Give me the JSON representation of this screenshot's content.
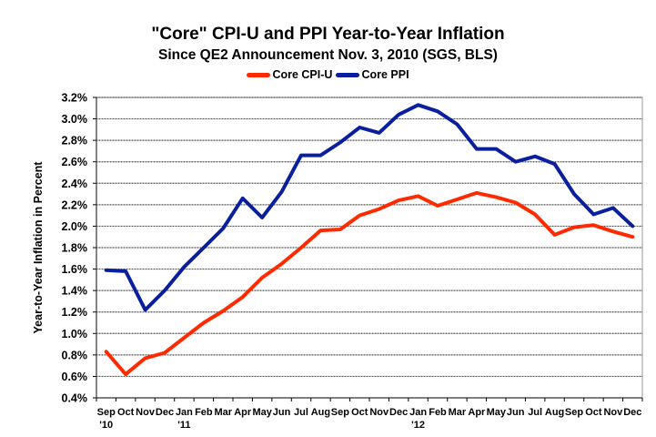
{
  "chart_data": {
    "type": "line",
    "title": "\"Core\" CPI-U and PPI Year-to-Year Inflation",
    "subtitle": "Since QE2 Announcement Nov. 3, 2010 (SGS, BLS)",
    "xlabel": "",
    "ylabel": "Year-to-Year Inflation in Percent",
    "ylim": [
      0.4,
      3.2
    ],
    "ytick_step": 0.2,
    "yticks": [
      "0.4%",
      "0.6%",
      "0.8%",
      "1.0%",
      "1.2%",
      "1.4%",
      "1.6%",
      "1.8%",
      "2.0%",
      "2.2%",
      "2.4%",
      "2.6%",
      "2.8%",
      "3.0%",
      "3.2%"
    ],
    "grid": true,
    "legend_position": "top-center",
    "categories": [
      "Sep",
      "Oct",
      "Nov",
      "Dec",
      "Jan",
      "Feb",
      "Mar",
      "Apr",
      "May",
      "Jun",
      "Jul",
      "Aug",
      "Sep",
      "Oct",
      "Nov",
      "Dec",
      "Jan",
      "Feb",
      "Mar",
      "Apr",
      "May",
      "Jun",
      "Jul",
      "Aug",
      "Sep",
      "Oct",
      "Nov",
      "Dec"
    ],
    "year_labels": {
      "0": "'10",
      "4": "'11",
      "16": "'12"
    },
    "series": [
      {
        "name": "Core CPI-U",
        "color": "#ff2a00",
        "values": [
          0.83,
          0.62,
          0.77,
          0.82,
          0.96,
          1.1,
          1.21,
          1.34,
          1.52,
          1.65,
          1.8,
          1.96,
          1.97,
          2.1,
          2.16,
          2.24,
          2.28,
          2.19,
          2.25,
          2.31,
          2.27,
          2.22,
          2.11,
          1.92,
          1.99,
          2.01,
          1.95,
          1.9
        ]
      },
      {
        "name": "Core PPI",
        "color": "#0a1f9e",
        "values": [
          1.59,
          1.58,
          1.22,
          1.4,
          1.62,
          1.8,
          1.98,
          2.26,
          2.08,
          2.32,
          2.66,
          2.66,
          2.78,
          2.92,
          2.87,
          3.04,
          3.13,
          3.07,
          2.95,
          2.72,
          2.72,
          2.6,
          2.65,
          2.58,
          2.3,
          2.11,
          2.17,
          2.0
        ]
      }
    ]
  }
}
